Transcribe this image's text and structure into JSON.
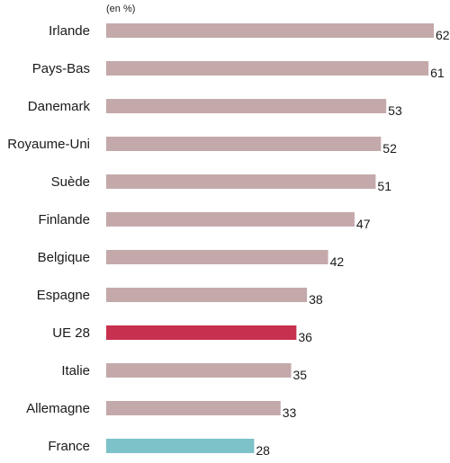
{
  "chart_data": {
    "type": "bar",
    "orientation": "horizontal",
    "unit_label": "(en %)",
    "categories": [
      "Irlande",
      "Pays-Bas",
      "Danemark",
      "Royaume-Uni",
      "Suède",
      "Finlande",
      "Belgique",
      "Espagne",
      "UE 28",
      "Italie",
      "Allemagne",
      "France"
    ],
    "values": [
      62,
      61,
      53,
      52,
      51,
      47,
      42,
      38,
      36,
      35,
      33,
      28
    ],
    "value_labels": [
      "62",
      "61",
      "53",
      "52",
      "51",
      "47",
      "42",
      "38",
      "36",
      "35",
      "33",
      "28"
    ],
    "xlim": [
      0,
      62
    ],
    "grid": false,
    "legend": "none",
    "colors": {
      "default": "#c4a9ab",
      "UE 28": "#c8304f",
      "France": "#7cc2c8"
    }
  }
}
